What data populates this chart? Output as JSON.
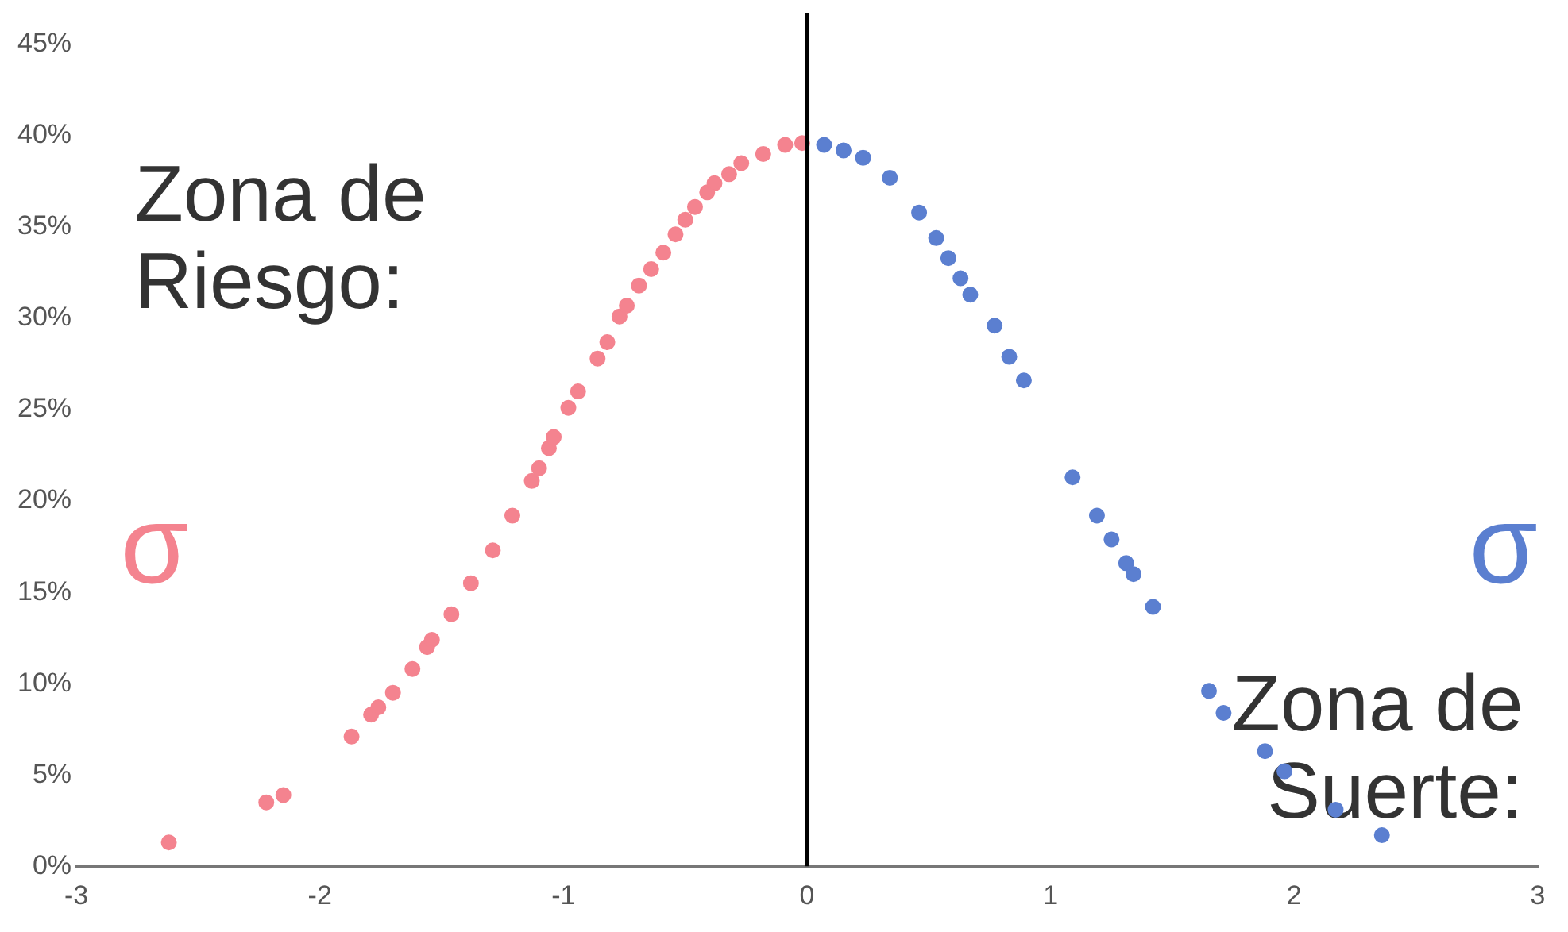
{
  "chart_data": {
    "type": "scatter",
    "marker": "circle",
    "legend": false,
    "grid": false,
    "xlim": [
      -3,
      3
    ],
    "xticks": [
      -3,
      -2,
      -1,
      0,
      1,
      2,
      3
    ],
    "ylim": [
      0,
      45
    ],
    "yticks": [
      {
        "value": 0,
        "label": "0%"
      },
      {
        "value": 5,
        "label": "5%"
      },
      {
        "value": 10,
        "label": "10%"
      },
      {
        "value": 15,
        "label": "15%"
      },
      {
        "value": 20,
        "label": "20%"
      },
      {
        "value": 25,
        "label": "25%"
      },
      {
        "value": 30,
        "label": "30%"
      },
      {
        "value": 35,
        "label": "35%"
      },
      {
        "value": 40,
        "label": "40%"
      },
      {
        "value": 45,
        "label": "45%"
      }
    ],
    "series": [
      {
        "color": "#f4838f",
        "x": [
          -2.62,
          -2.22,
          -2.15,
          -1.87,
          -1.79,
          -1.76,
          -1.7,
          -1.62,
          -1.56,
          -1.54,
          -1.46,
          -1.38,
          -1.29,
          -1.21,
          -1.13,
          -1.1,
          -1.06,
          -1.04,
          -0.98,
          -0.94,
          -0.86,
          -0.82,
          -0.77,
          -0.74,
          -0.69,
          -0.64,
          -0.59,
          -0.54,
          -0.5,
          -0.46,
          -0.41,
          -0.38,
          -0.32,
          -0.27,
          -0.18,
          -0.09,
          -0.02
        ],
        "values": [
          1.3,
          3.5,
          3.9,
          7.1,
          8.3,
          8.7,
          9.5,
          10.8,
          12,
          12.4,
          13.8,
          15.5,
          17.3,
          19.2,
          21.1,
          21.8,
          22.9,
          23.5,
          25.1,
          26,
          27.8,
          28.7,
          30.1,
          30.7,
          31.8,
          32.7,
          33.6,
          34.6,
          35.4,
          36.1,
          36.9,
          37.4,
          37.9,
          38.5,
          39,
          39.5,
          39.6
        ]
      },
      {
        "color": "#5b7fd0",
        "x": [
          0.07,
          0.15,
          0.23,
          0.34,
          0.46,
          0.53,
          0.58,
          0.63,
          0.67,
          0.77,
          0.83,
          0.89,
          1.09,
          1.19,
          1.25,
          1.31,
          1.34,
          1.42,
          1.65,
          1.71,
          1.88,
          1.96,
          2.17,
          2.36
        ],
        "values": [
          39.5,
          39.2,
          38.8,
          37.7,
          35.8,
          34.4,
          33.3,
          32.2,
          31.3,
          29.6,
          27.9,
          26.6,
          21.3,
          19.2,
          17.9,
          16.6,
          16,
          14.2,
          9.6,
          8.4,
          6.3,
          5.2,
          3.1,
          1.7
        ]
      }
    ],
    "ref_lines": [
      {
        "axis": "x",
        "value": 0,
        "color": "#000000"
      }
    ],
    "annotations": [
      "Zona de Riesgo:",
      "σ",
      "σ",
      "Zona de Suerte:"
    ]
  }
}
